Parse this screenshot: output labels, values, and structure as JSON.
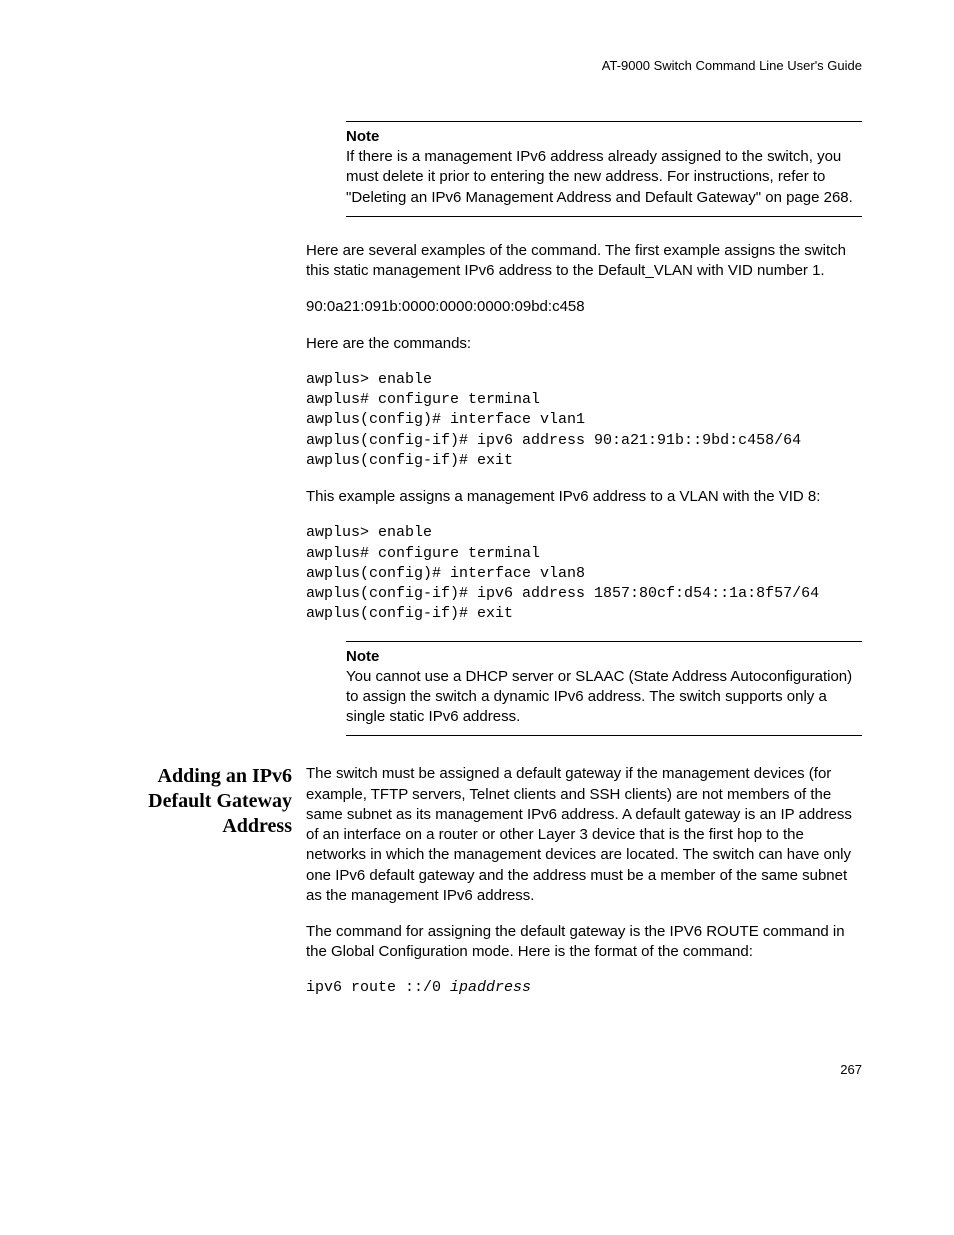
{
  "header": "AT-9000 Switch Command Line User's Guide",
  "note1": {
    "label": "Note",
    "text": "If there is a management IPv6 address already assigned to the switch, you must delete it prior to entering the new address. For instructions, refer to \"Deleting an IPv6 Management Address and Default Gateway\" on page 268."
  },
  "para1": "Here are several examples of the command. The first example assigns the switch this static management IPv6 address to the Default_VLAN with VID number 1.",
  "ipv6addr": "90:0a21:091b:0000:0000:0000:09bd:c458",
  "para2": "Here are the commands:",
  "code1": "awplus> enable\nawplus# configure terminal\nawplus(config)# interface vlan1\nawplus(config-if)# ipv6 address 90:a21:91b::9bd:c458/64\nawplus(config-if)# exit",
  "para3": "This example assigns a management IPv6 address to a VLAN with the VID 8:",
  "code2": "awplus> enable\nawplus# configure terminal\nawplus(config)# interface vlan8\nawplus(config-if)# ipv6 address 1857:80cf:d54::1a:8f57/64\nawplus(config-if)# exit",
  "note2": {
    "label": "Note",
    "text": "You cannot use a DHCP server or SLAAC (State Address Autoconfiguration) to assign the switch a dynamic IPv6 address. The switch supports only a single static IPv6 address."
  },
  "section": {
    "title": "Adding an IPv6 Default Gateway Address",
    "para1": "The switch must be assigned a default gateway if the management devices (for example, TFTP servers, Telnet clients and SSH clients) are not members of the same subnet as its management IPv6 address. A default gateway is an IP address of an interface on a router or other Layer 3 device that is the first hop to the networks in which the management devices are located. The switch can have only one IPv6 default gateway and the address must be a member of the same subnet as the management IPv6 address.",
    "para2": "The command for assigning the default gateway is the IPV6 ROUTE command in the Global Configuration mode. Here is the format of the command:",
    "code_prefix": "ipv6 route ::/0 ",
    "code_ital": "ipaddress"
  },
  "pagenum": "267"
}
